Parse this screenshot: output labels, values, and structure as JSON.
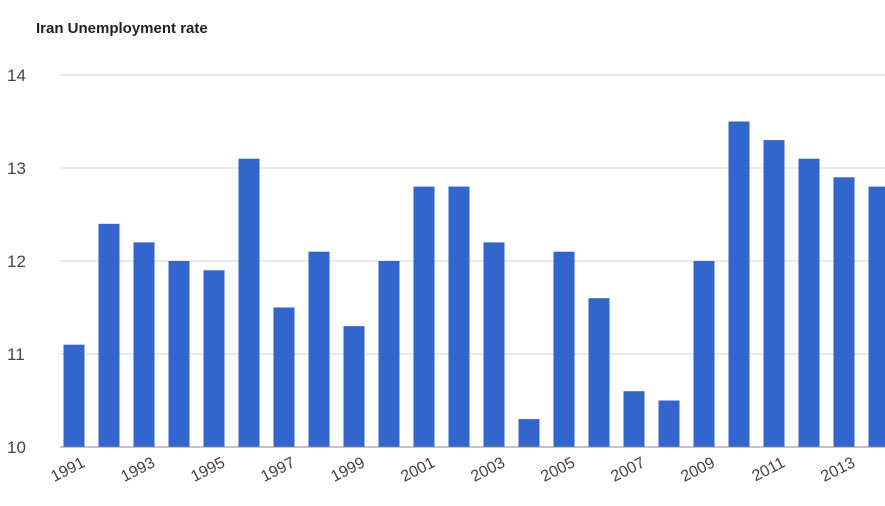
{
  "chart_data": {
    "type": "bar",
    "title": "Iran Unemployment rate",
    "xlabel": "",
    "ylabel": "",
    "categories": [
      "1991",
      "1992",
      "1993",
      "1994",
      "1995",
      "1996",
      "1997",
      "1998",
      "1999",
      "2000",
      "2001",
      "2002",
      "2003",
      "2004",
      "2005",
      "2006",
      "2007",
      "2008",
      "2009",
      "2010",
      "2011",
      "2012",
      "2013",
      "2014"
    ],
    "x_tick_labels": [
      "1991",
      "1993",
      "1995",
      "1997",
      "1999",
      "2001",
      "2003",
      "2005",
      "2007",
      "2009",
      "2011",
      "2013"
    ],
    "values": [
      11.1,
      12.4,
      12.2,
      12.0,
      11.9,
      13.1,
      11.5,
      12.1,
      11.3,
      12.0,
      12.8,
      12.8,
      12.2,
      10.3,
      12.1,
      11.6,
      10.6,
      10.5,
      12.0,
      13.5,
      13.3,
      13.1,
      12.9,
      12.8
    ],
    "ylim": [
      10,
      14
    ],
    "y_ticks": [
      "10",
      "11",
      "12",
      "13",
      "14"
    ],
    "grid": true,
    "legend": "none",
    "bar_color": "#3366cc"
  }
}
